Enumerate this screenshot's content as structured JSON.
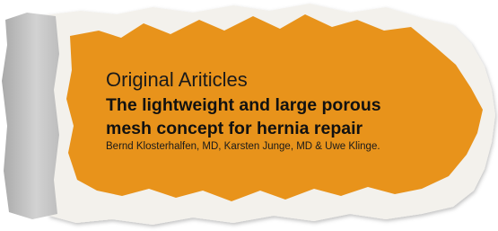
{
  "section": "Original Ariticles",
  "title_lines": [
    "The lightweight and large porous",
    "mesh concept for hernia repair"
  ],
  "authors": "Bernd Klosterhalfen, MD, Karsten Junge, MD & Uwe Klinge."
}
